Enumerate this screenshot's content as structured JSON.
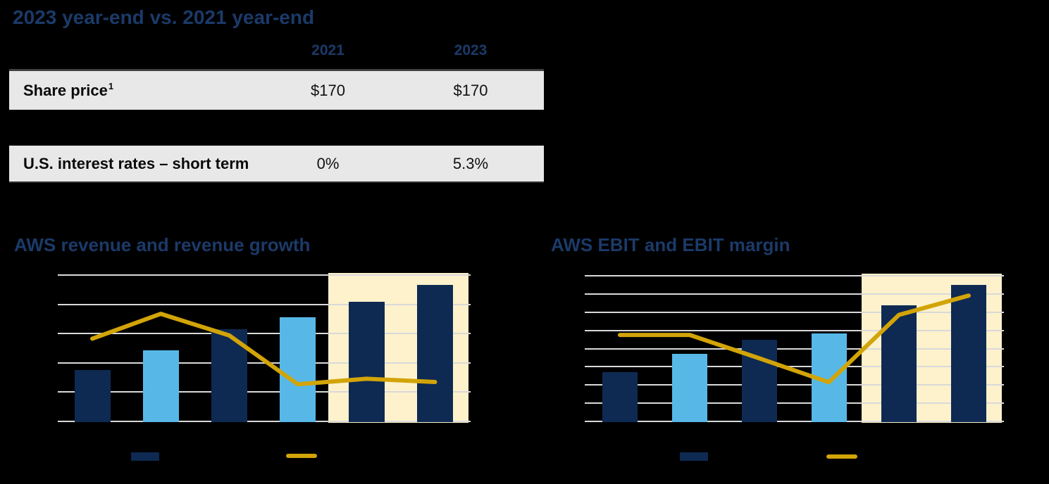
{
  "page": {
    "background": "#000000"
  },
  "comparison": {
    "title": "2023 year-end vs. 2021 year-end",
    "columns": [
      "2021",
      "2023"
    ],
    "rows": [
      {
        "label": "Share price",
        "superscript": "1",
        "values": [
          "$170",
          "$170"
        ]
      },
      {
        "label": "U.S. interest rates – short term",
        "superscript": "",
        "values": [
          "0%",
          "5.3%"
        ]
      }
    ],
    "row_background": "#e8e8e8"
  },
  "colors": {
    "navy_bar": "#0e2a52",
    "light_blue_bar": "#57b8e8",
    "gold_line": "#d2a408",
    "highlight": "#fdf2cc",
    "gridline": "#d9d9d9",
    "title_navy": "#1b3a69"
  },
  "chart_data": [
    {
      "type": "bar+line",
      "title": "AWS revenue and revenue growth",
      "categories": [
        "",
        "",
        "",
        "",
        "",
        ""
      ],
      "category_labels_visible": false,
      "axis_tick_labels_visible": false,
      "value_units": "gridline units (axis labels not rendered/visible)",
      "gridlines": 6,
      "ylim": [
        0,
        5
      ],
      "series": [
        {
          "name": "revenue-bars",
          "type": "bar",
          "values": [
            1.78,
            2.45,
            3.18,
            3.58,
            4.12,
            4.68
          ],
          "bar_colors": [
            "#0e2a52",
            "#57b8e8",
            "#0e2a52",
            "#57b8e8",
            "#0e2a52",
            "#0e2a52"
          ]
        },
        {
          "name": "revenue-growth-line",
          "type": "line",
          "color": "#d2a408",
          "values": [
            2.85,
            3.7,
            2.96,
            1.29,
            1.48,
            1.37
          ]
        }
      ],
      "highlight": {
        "start_index": 4,
        "end_index": 5,
        "color": "#fdf2cc"
      },
      "legend": [
        {
          "swatch": "bar",
          "color": "#0e2a52",
          "label": ""
        },
        {
          "swatch": "line",
          "color": "#d2a408",
          "label": ""
        }
      ],
      "legend_labels_visible": false
    },
    {
      "type": "bar+line",
      "title": "AWS EBIT and EBIT margin",
      "categories": [
        "",
        "",
        "",
        "",
        "",
        ""
      ],
      "category_labels_visible": false,
      "axis_tick_labels_visible": false,
      "value_units": "gridline units (axis labels not rendered/visible)",
      "gridlines": 9,
      "ylim": [
        0,
        8
      ],
      "series": [
        {
          "name": "ebit-bars",
          "type": "bar",
          "values": [
            2.73,
            3.73,
            4.54,
            4.86,
            6.43,
            7.53
          ],
          "bar_colors": [
            "#0e2a52",
            "#57b8e8",
            "#0e2a52",
            "#57b8e8",
            "#0e2a52",
            "#0e2a52"
          ]
        },
        {
          "name": "ebit-margin-line",
          "type": "line",
          "color": "#d2a408",
          "values": [
            4.79,
            4.79,
            3.5,
            2.19,
            5.89,
            6.95
          ]
        }
      ],
      "highlight": {
        "start_index": 4,
        "end_index": 5,
        "color": "#fdf2cc"
      },
      "legend": [
        {
          "swatch": "bar",
          "color": "#0e2a52",
          "label": ""
        },
        {
          "swatch": "line",
          "color": "#d2a408",
          "label": ""
        }
      ],
      "legend_labels_visible": false
    }
  ]
}
